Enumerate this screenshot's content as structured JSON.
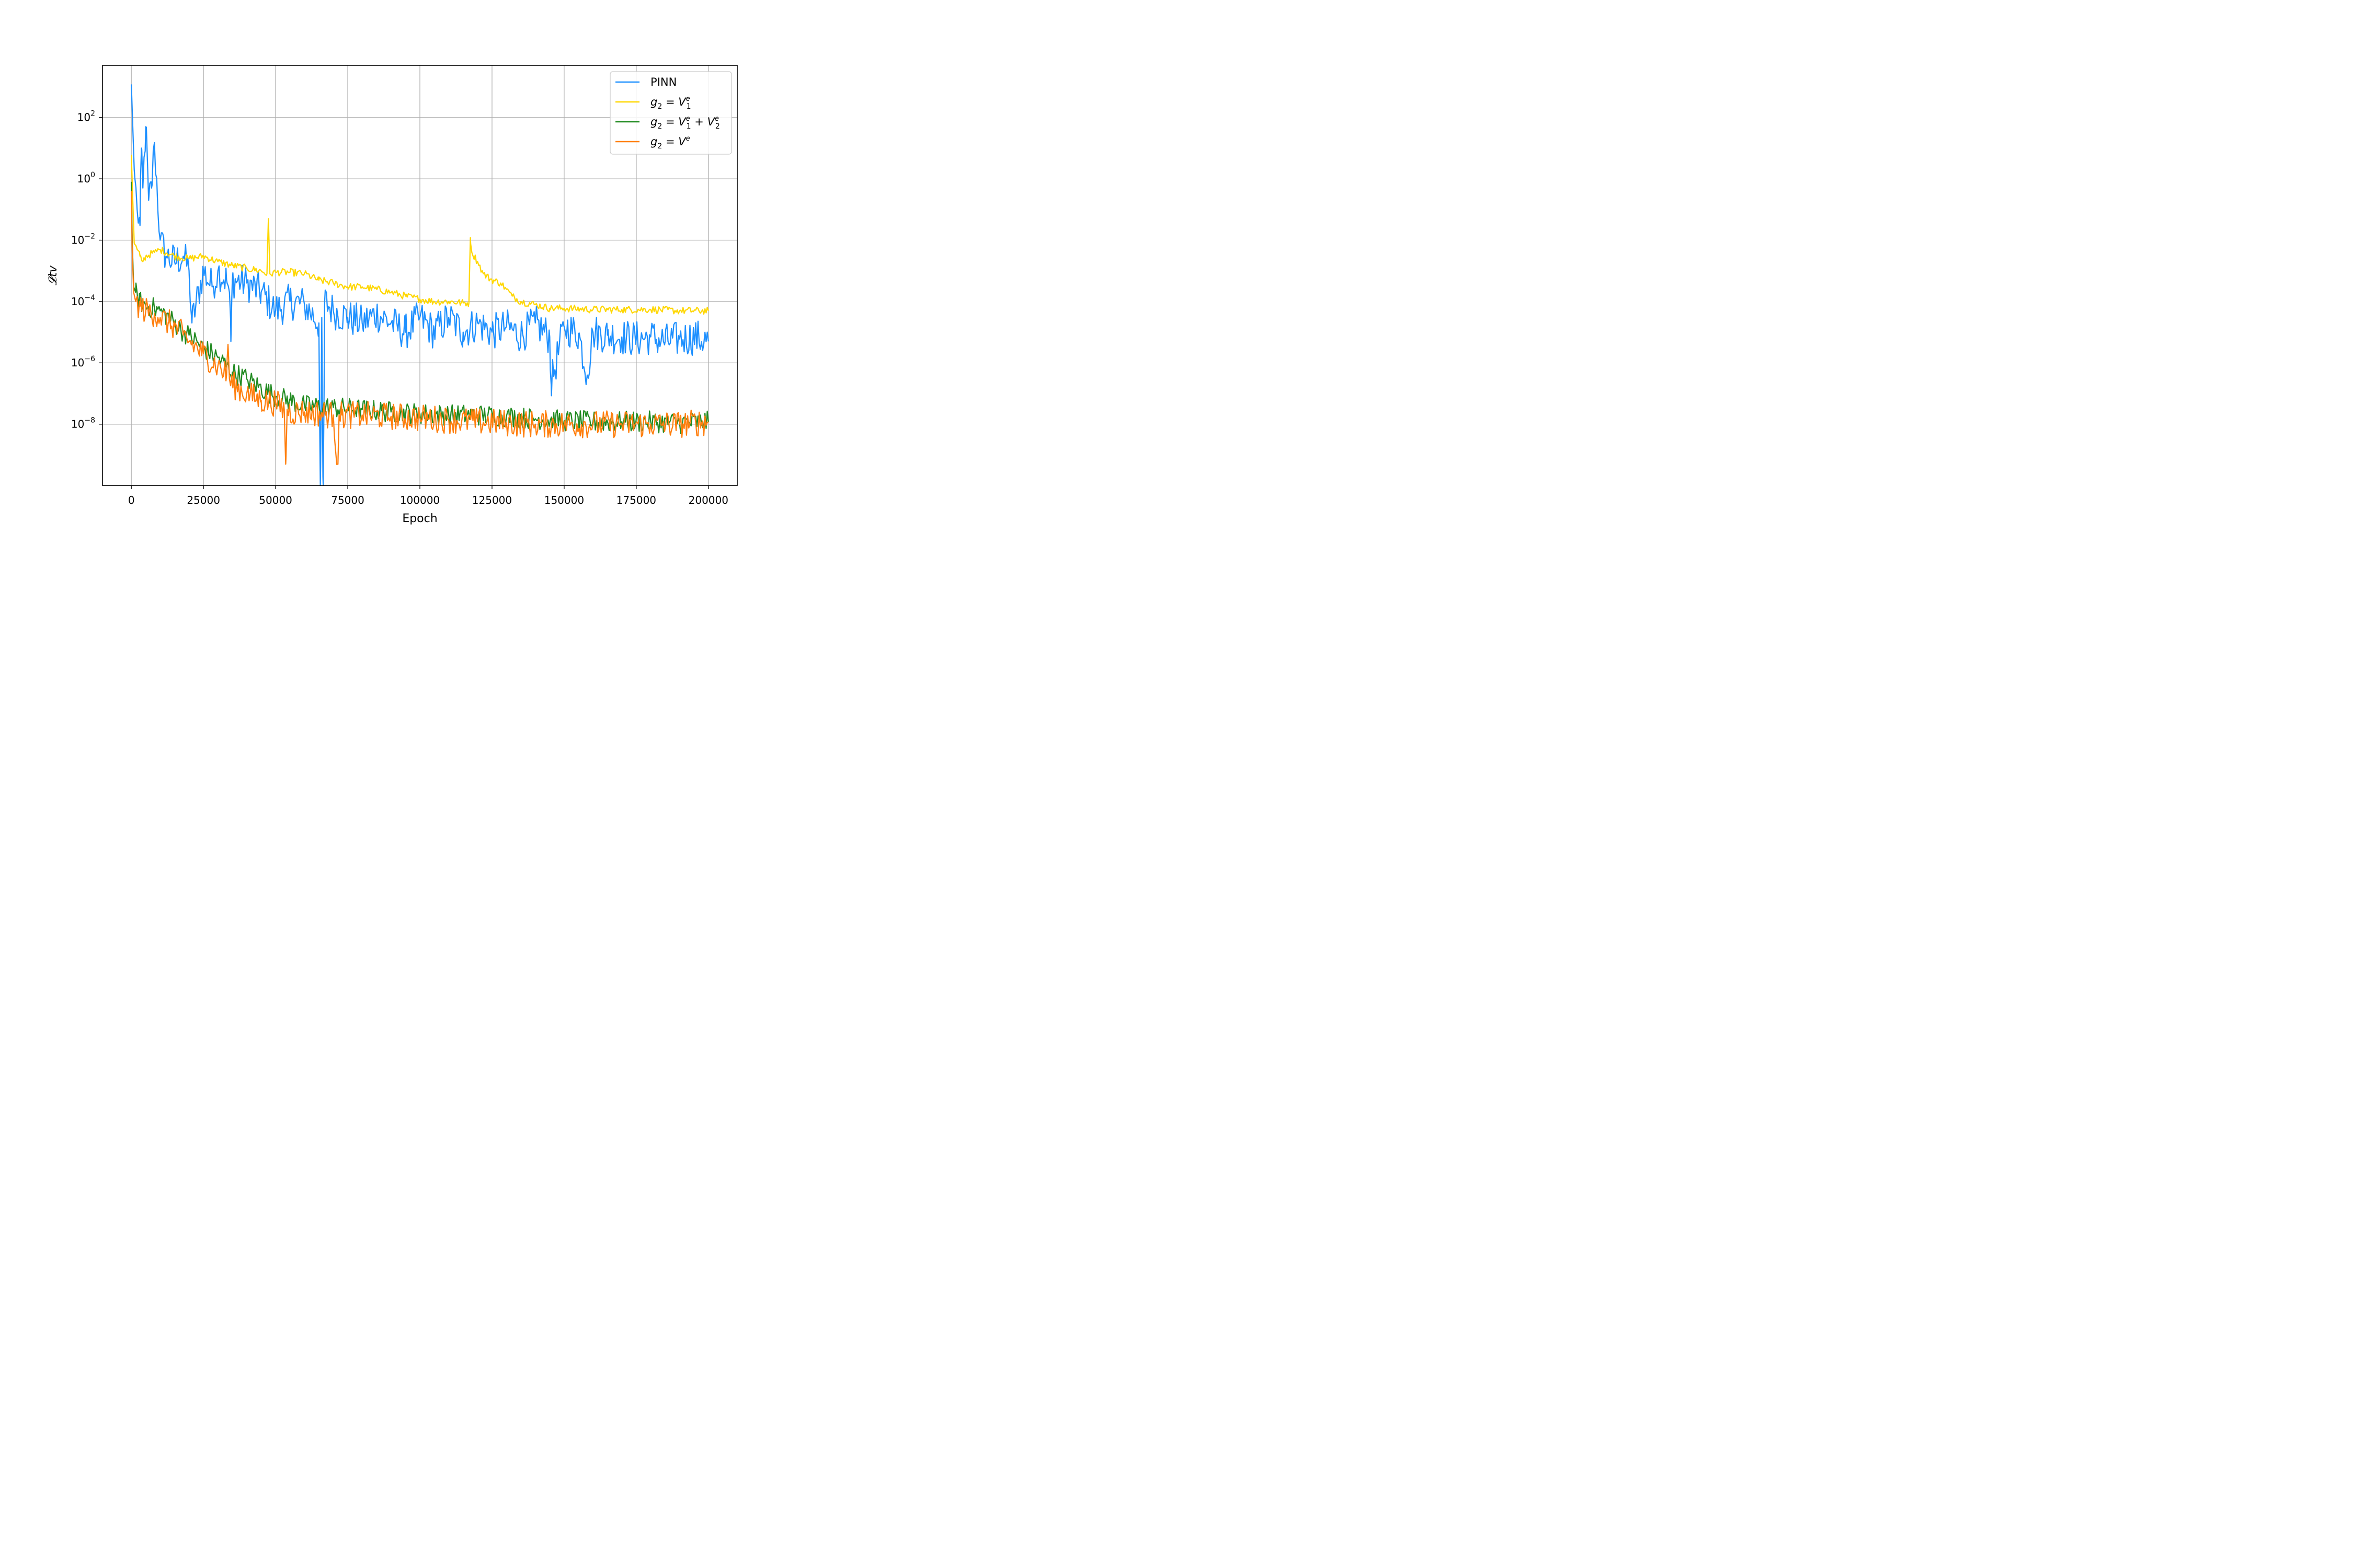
{
  "chart_data": {
    "type": "line",
    "title": "",
    "xlabel": "Epoch",
    "ylabel": "𝓛tv",
    "yscale": "log",
    "xlim": [
      -10000,
      210000
    ],
    "ylim": [
      1e-10,
      5000.0
    ],
    "grid": true,
    "legend_position": "top-right",
    "x_ticks": [
      {
        "value": 0,
        "label": "0"
      },
      {
        "value": 25000,
        "label": "25000"
      },
      {
        "value": 50000,
        "label": "50000"
      },
      {
        "value": 75000,
        "label": "75000"
      },
      {
        "value": 100000,
        "label": "100000"
      },
      {
        "value": 125000,
        "label": "125000"
      },
      {
        "value": 150000,
        "label": "150000"
      },
      {
        "value": 175000,
        "label": "175000"
      },
      {
        "value": 200000,
        "label": "200000"
      }
    ],
    "y_ticks": [
      {
        "exp": 2,
        "base": "10",
        "sup": "2"
      },
      {
        "exp": 0,
        "base": "10",
        "sup": "0"
      },
      {
        "exp": -2,
        "base": "10",
        "sup": "−2"
      },
      {
        "exp": -4,
        "base": "10",
        "sup": "−4"
      },
      {
        "exp": -6,
        "base": "10",
        "sup": "−6"
      },
      {
        "exp": -8,
        "base": "10",
        "sup": "−8"
      }
    ],
    "series": [
      {
        "name": "PINN",
        "legend": {
          "parts": [
            {
              "t": "PINN",
              "style": "normal"
            }
          ]
        },
        "color": "#1e90ff",
        "x": [
          0,
          1000,
          2000,
          3000,
          3500,
          4000,
          5000,
          6000,
          7000,
          8000,
          10000,
          12000,
          15000,
          18000,
          20000,
          21000,
          25000,
          28000,
          30000,
          33000,
          34000,
          34500,
          35000,
          40000,
          45000,
          50000,
          55000,
          60000,
          65000,
          65500,
          66000,
          66500,
          67000,
          70000,
          75000,
          80000,
          85000,
          90000,
          95000,
          100000,
          105000,
          110000,
          115000,
          120000,
          125000,
          130000,
          135000,
          140000,
          145000,
          145500,
          150000,
          155000,
          158000,
          160000,
          165000,
          170000,
          175000,
          180000,
          185000,
          190000,
          195000,
          200000
        ],
        "y": [
          1200.0,
          2,
          0.1,
          0.03,
          10,
          0.5,
          50,
          0.2,
          0.5,
          15,
          0.01,
          0.003,
          0.002,
          0.003,
          0.001,
          2e-05,
          0.001,
          0.0003,
          0.001,
          0.0005,
          0.0002,
          5e-06,
          0.0005,
          0.0004,
          0.0002,
          5e-05,
          0.0001,
          8e-05,
          2e-05,
          5e-12,
          3e-05,
          5e-12,
          0.0001,
          5e-05,
          3e-05,
          2e-05,
          4e-05,
          2e-05,
          1e-05,
          3e-05,
          1e-05,
          3e-05,
          1e-05,
          2e-05,
          1e-05,
          1.5e-05,
          8e-06,
          2e-05,
          7e-06,
          2e-07,
          1.5e-05,
          9e-06,
          4e-07,
          1e-05,
          8e-06,
          7e-06,
          6e-06,
          7e-06,
          5e-06,
          6e-06,
          7e-06,
          5e-06
        ],
        "noise": 0.6
      },
      {
        "name": "g2 = V1e",
        "legend": {
          "parts": [
            {
              "t": "g",
              "style": "italic"
            },
            {
              "t": "2",
              "style": "sub"
            },
            {
              "t": " = ",
              "style": "normal"
            },
            {
              "t": "V",
              "style": "italic"
            },
            {
              "t": "e",
              "style": "sup-italic"
            },
            {
              "t": "1",
              "style": "sub"
            }
          ]
        },
        "color": "#ffd700",
        "x": [
          0,
          500,
          1000,
          2000,
          3000,
          4000,
          5000,
          8000,
          10000,
          15000,
          20000,
          25000,
          30000,
          35000,
          40000,
          45000,
          47000,
          47500,
          48000,
          50000,
          55000,
          60000,
          65000,
          70000,
          75000,
          80000,
          85000,
          90000,
          95000,
          100000,
          105000,
          110000,
          115000,
          117000,
          117500,
          118000,
          120000,
          122000,
          125000,
          128000,
          130000,
          132000,
          135000,
          140000,
          145000,
          150000,
          160000,
          170000,
          180000,
          190000,
          200000
        ],
        "y": [
          6,
          0.2,
          0.008,
          0.005,
          0.003,
          0.002,
          0.003,
          0.004,
          0.005,
          0.003,
          0.0025,
          0.003,
          0.002,
          0.0015,
          0.0012,
          0.001,
          0.0008,
          0.05,
          0.0008,
          0.0009,
          0.0009,
          0.0008,
          0.0005,
          0.0004,
          0.0003,
          0.0003,
          0.00025,
          0.0002,
          0.00015,
          0.00012,
          0.0001,
          0.0001,
          9e-05,
          9e-05,
          0.012,
          0.004,
          0.002,
          0.0008,
          0.0005,
          0.0004,
          0.00025,
          0.00015,
          0.0001,
          8e-05,
          6e-05,
          6e-05,
          5.5e-05,
          5.5e-05,
          5.5e-05,
          5e-05,
          5e-05
        ],
        "noise": 0.12
      },
      {
        "name": "g2 = V1e + V2e",
        "legend": {
          "parts": [
            {
              "t": "g",
              "style": "italic"
            },
            {
              "t": "2",
              "style": "sub"
            },
            {
              "t": " = ",
              "style": "normal"
            },
            {
              "t": "V",
              "style": "italic"
            },
            {
              "t": "e",
              "style": "sup-italic"
            },
            {
              "t": "1",
              "style": "sub"
            },
            {
              "t": " + ",
              "style": "normal"
            },
            {
              "t": "V",
              "style": "italic"
            },
            {
              "t": "e",
              "style": "sup-italic"
            },
            {
              "t": "2",
              "style": "sub"
            }
          ]
        },
        "color": "#228b22",
        "x": [
          0,
          300,
          800,
          1500,
          3000,
          5000,
          8000,
          10000,
          13000,
          15000,
          18000,
          20000,
          25000,
          30000,
          35000,
          40000,
          45000,
          50000,
          55000,
          60000,
          70000,
          80000,
          90000,
          100000,
          110000,
          120000,
          130000,
          140000,
          150000,
          160000,
          170000,
          180000,
          190000,
          200000
        ],
        "y": [
          0.8,
          0.01,
          0.0003,
          0.0002,
          0.0001,
          7e-05,
          6e-05,
          5e-05,
          3e-05,
          2e-05,
          1e-05,
          8e-06,
          3e-06,
          1.5e-06,
          5e-07,
          3e-07,
          1.5e-07,
          8e-08,
          6e-08,
          4e-08,
          3.5e-08,
          3e-08,
          2.5e-08,
          2.2e-08,
          2e-08,
          2e-08,
          1.8e-08,
          1.5e-08,
          1.3e-08,
          1.2e-08,
          1.2e-08,
          1.2e-08,
          1.1e-08,
          1.2e-08
        ],
        "noise": 0.35
      },
      {
        "name": "g2 = Ve",
        "legend": {
          "parts": [
            {
              "t": "g",
              "style": "italic"
            },
            {
              "t": "2",
              "style": "sub"
            },
            {
              "t": " = ",
              "style": "normal"
            },
            {
              "t": "V",
              "style": "italic"
            },
            {
              "t": "e",
              "style": "sup-italic"
            }
          ]
        },
        "color": "#ff7f0e",
        "x": [
          0,
          300,
          800,
          1500,
          3000,
          5000,
          8000,
          10000,
          13000,
          15000,
          18000,
          20000,
          25000,
          30000,
          33000,
          33500,
          34000,
          35000,
          40000,
          45000,
          50000,
          53000,
          53500,
          54000,
          55000,
          60000,
          70000,
          71500,
          72000,
          73000,
          80000,
          90000,
          100000,
          110000,
          120000,
          130000,
          140000,
          150000,
          160000,
          170000,
          180000,
          190000,
          200000
        ],
        "y": [
          0.4,
          0.005,
          0.0002,
          0.0001,
          7e-05,
          5e-05,
          4e-05,
          3e-05,
          2e-05,
          1.5e-05,
          8e-06,
          5e-06,
          2e-06,
          8e-07,
          4e-07,
          4e-06,
          3e-07,
          2e-07,
          1e-07,
          6e-08,
          5e-08,
          3e-08,
          5e-10,
          3e-08,
          2.5e-08,
          2.5e-08,
          2e-08,
          5e-10,
          2e-08,
          2e-08,
          2e-08,
          1.8e-08,
          1.6e-08,
          1.4e-08,
          1.2e-08,
          1.1e-08,
          1e-08,
          1e-08,
          1e-08,
          1e-08,
          1e-08,
          1e-08,
          1.2e-08
        ],
        "noise": 0.45
      }
    ]
  }
}
